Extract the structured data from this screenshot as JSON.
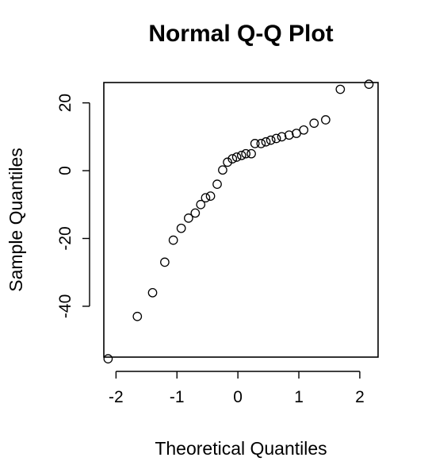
{
  "chart_data": {
    "type": "scatter",
    "title": "Normal Q-Q Plot",
    "xlabel": "Theoretical Quantiles",
    "ylabel": "Sample Quantiles",
    "xlim": [
      -2.2,
      2.3
    ],
    "ylim": [
      -55,
      26
    ],
    "x_ticks": [
      -2,
      -1,
      0,
      1,
      2
    ],
    "x_tick_labels": [
      "-2",
      "-1",
      "0",
      "1",
      "2"
    ],
    "y_ticks": [
      -40,
      -20,
      0,
      20
    ],
    "y_tick_labels": [
      "-40",
      "-20",
      "0",
      "20"
    ],
    "grid": false,
    "legend": "none",
    "points": [
      {
        "x": -2.13,
        "y": -55.5
      },
      {
        "x": -1.65,
        "y": -43
      },
      {
        "x": -1.4,
        "y": -36
      },
      {
        "x": -1.2,
        "y": -27
      },
      {
        "x": -1.06,
        "y": -20.5
      },
      {
        "x": -0.93,
        "y": -17
      },
      {
        "x": -0.81,
        "y": -14
      },
      {
        "x": -0.7,
        "y": -12.5
      },
      {
        "x": -0.61,
        "y": -10
      },
      {
        "x": -0.53,
        "y": -8
      },
      {
        "x": -0.45,
        "y": -7.5
      },
      {
        "x": -0.34,
        "y": -4
      },
      {
        "x": -0.25,
        "y": 0.2
      },
      {
        "x": -0.17,
        "y": 2.5
      },
      {
        "x": -0.09,
        "y": 3.5
      },
      {
        "x": -0.02,
        "y": 4
      },
      {
        "x": 0.06,
        "y": 4.5
      },
      {
        "x": 0.13,
        "y": 5
      },
      {
        "x": 0.22,
        "y": 5
      },
      {
        "x": 0.28,
        "y": 8
      },
      {
        "x": 0.38,
        "y": 8
      },
      {
        "x": 0.46,
        "y": 8.5
      },
      {
        "x": 0.54,
        "y": 9
      },
      {
        "x": 0.63,
        "y": 9.5
      },
      {
        "x": 0.72,
        "y": 10
      },
      {
        "x": 0.84,
        "y": 10.5
      },
      {
        "x": 0.96,
        "y": 11
      },
      {
        "x": 1.08,
        "y": 12
      },
      {
        "x": 1.25,
        "y": 14
      },
      {
        "x": 1.44,
        "y": 15
      },
      {
        "x": 1.68,
        "y": 24
      },
      {
        "x": 2.15,
        "y": 25.5
      }
    ]
  }
}
